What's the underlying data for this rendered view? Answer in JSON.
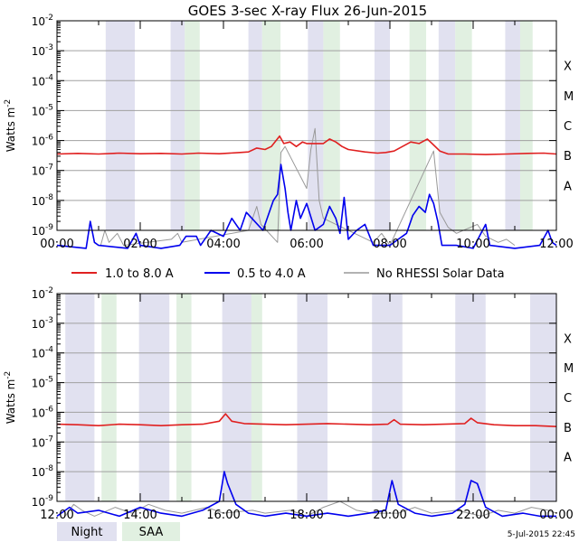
{
  "chart_data": [
    {
      "type": "line",
      "title": "GOES 3-sec X-ray Flux   26-Jun-2015",
      "ylabel": "Watts m",
      "ylabel_sup": "-2",
      "yscale": "log",
      "ylim_exp": [
        -9,
        -2
      ],
      "y_tick_exponents": [
        -9,
        -8,
        -7,
        -6,
        -5,
        -4,
        -3,
        -2
      ],
      "flare_classes": [
        "A",
        "B",
        "C",
        "M",
        "X"
      ],
      "xlim_hours": [
        0,
        12
      ],
      "x_tick_labels": [
        "00:00",
        "02:00",
        "04:00",
        "06:00",
        "08:00",
        "10:00",
        "12:00"
      ],
      "night_intervals_hours": [
        [
          1.17,
          1.87
        ],
        [
          2.73,
          3.07
        ],
        [
          4.6,
          4.93
        ],
        [
          6.03,
          6.4
        ],
        [
          7.63,
          8.0
        ],
        [
          9.17,
          9.57
        ],
        [
          10.77,
          11.13
        ]
      ],
      "saa_intervals_hours": [
        [
          3.07,
          3.43
        ],
        [
          4.93,
          5.37
        ],
        [
          6.4,
          6.8
        ],
        [
          8.47,
          8.87
        ],
        [
          9.57,
          9.97
        ],
        [
          11.13,
          11.43
        ]
      ],
      "series": [
        {
          "name": "1.0 to 8.0 A",
          "color": "#e02020",
          "points": [
            [
              0.0,
              -6.45
            ],
            [
              0.5,
              -6.43
            ],
            [
              1.0,
              -6.45
            ],
            [
              1.5,
              -6.42
            ],
            [
              2.0,
              -6.44
            ],
            [
              2.5,
              -6.43
            ],
            [
              3.0,
              -6.45
            ],
            [
              3.4,
              -6.42
            ],
            [
              3.9,
              -6.44
            ],
            [
              4.4,
              -6.4
            ],
            [
              4.6,
              -6.38
            ],
            [
              4.8,
              -6.25
            ],
            [
              5.0,
              -6.3
            ],
            [
              5.15,
              -6.2
            ],
            [
              5.35,
              -5.85
            ],
            [
              5.45,
              -6.1
            ],
            [
              5.6,
              -6.05
            ],
            [
              5.75,
              -6.2
            ],
            [
              5.9,
              -6.05
            ],
            [
              6.0,
              -6.1
            ],
            [
              6.4,
              -6.1
            ],
            [
              6.55,
              -5.95
            ],
            [
              6.7,
              -6.05
            ],
            [
              6.85,
              -6.2
            ],
            [
              7.0,
              -6.3
            ],
            [
              7.4,
              -6.38
            ],
            [
              7.7,
              -6.42
            ],
            [
              7.9,
              -6.4
            ],
            [
              8.1,
              -6.35
            ],
            [
              8.3,
              -6.2
            ],
            [
              8.5,
              -6.05
            ],
            [
              8.7,
              -6.1
            ],
            [
              8.9,
              -5.95
            ],
            [
              9.05,
              -6.15
            ],
            [
              9.2,
              -6.35
            ],
            [
              9.4,
              -6.45
            ],
            [
              9.8,
              -6.45
            ],
            [
              10.3,
              -6.47
            ],
            [
              10.8,
              -6.45
            ],
            [
              11.3,
              -6.43
            ],
            [
              11.7,
              -6.42
            ],
            [
              12.0,
              -6.45
            ]
          ]
        },
        {
          "name": "0.5 to 4.0 A",
          "color": "#0000ee",
          "points": [
            [
              0.0,
              -9.5
            ],
            [
              0.7,
              -9.6
            ],
            [
              0.8,
              -8.7
            ],
            [
              0.9,
              -9.4
            ],
            [
              1.0,
              -9.5
            ],
            [
              1.7,
              -9.6
            ],
            [
              1.9,
              -9.1
            ],
            [
              2.0,
              -9.5
            ],
            [
              2.5,
              -9.6
            ],
            [
              2.95,
              -9.5
            ],
            [
              3.1,
              -9.2
            ],
            [
              3.35,
              -9.2
            ],
            [
              3.45,
              -9.5
            ],
            [
              3.7,
              -9.0
            ],
            [
              4.0,
              -9.2
            ],
            [
              4.2,
              -8.6
            ],
            [
              4.4,
              -9.0
            ],
            [
              4.55,
              -8.4
            ],
            [
              4.95,
              -9.0
            ],
            [
              5.05,
              -8.6
            ],
            [
              5.2,
              -8.0
            ],
            [
              5.3,
              -7.8
            ],
            [
              5.38,
              -6.8
            ],
            [
              5.48,
              -7.6
            ],
            [
              5.55,
              -8.4
            ],
            [
              5.62,
              -9.0
            ],
            [
              5.75,
              -8.0
            ],
            [
              5.85,
              -8.6
            ],
            [
              6.0,
              -8.1
            ],
            [
              6.2,
              -9.0
            ],
            [
              6.4,
              -8.8
            ],
            [
              6.55,
              -8.2
            ],
            [
              6.7,
              -8.6
            ],
            [
              6.8,
              -9.1
            ],
            [
              6.9,
              -7.9
            ],
            [
              7.0,
              -9.3
            ],
            [
              7.2,
              -9.0
            ],
            [
              7.4,
              -8.8
            ],
            [
              7.6,
              -9.5
            ],
            [
              8.0,
              -9.5
            ],
            [
              8.2,
              -9.3
            ],
            [
              8.4,
              -9.1
            ],
            [
              8.55,
              -8.5
            ],
            [
              8.7,
              -8.2
            ],
            [
              8.85,
              -8.4
            ],
            [
              8.95,
              -7.8
            ],
            [
              9.05,
              -8.1
            ],
            [
              9.15,
              -8.7
            ],
            [
              9.25,
              -9.5
            ],
            [
              9.6,
              -9.5
            ],
            [
              10.0,
              -9.6
            ],
            [
              10.3,
              -8.8
            ],
            [
              10.4,
              -9.5
            ],
            [
              11.0,
              -9.6
            ],
            [
              11.6,
              -9.5
            ],
            [
              11.8,
              -9.0
            ],
            [
              11.9,
              -9.4
            ],
            [
              12.0,
              -9.5
            ]
          ]
        },
        {
          "name": "No RHESSI Solar Data",
          "color": "#999999",
          "points": [
            [
              1.05,
              -9.5
            ],
            [
              1.15,
              -9.0
            ],
            [
              1.25,
              -9.4
            ],
            [
              1.45,
              -9.1
            ],
            [
              1.6,
              -9.5
            ],
            [
              2.75,
              -9.3
            ],
            [
              2.9,
              -9.1
            ],
            [
              3.0,
              -9.4
            ],
            [
              4.6,
              -9.0
            ],
            [
              4.7,
              -8.6
            ],
            [
              4.8,
              -8.2
            ],
            [
              4.9,
              -8.8
            ],
            [
              5.3,
              -9.4
            ],
            [
              5.38,
              -6.4
            ],
            [
              5.48,
              -6.2
            ],
            [
              6.0,
              -7.6
            ],
            [
              6.1,
              -6.3
            ],
            [
              6.2,
              -5.6
            ],
            [
              6.3,
              -8.0
            ],
            [
              6.4,
              -8.6
            ],
            [
              7.6,
              -9.4
            ],
            [
              7.8,
              -9.1
            ],
            [
              8.0,
              -9.5
            ],
            [
              9.05,
              -6.35
            ],
            [
              9.2,
              -8.4
            ],
            [
              9.4,
              -8.9
            ],
            [
              9.6,
              -9.1
            ],
            [
              10.1,
              -8.8
            ],
            [
              10.3,
              -9.2
            ],
            [
              10.6,
              -9.4
            ],
            [
              10.8,
              -9.3
            ],
            [
              11.0,
              -9.5
            ]
          ]
        }
      ]
    },
    {
      "type": "line",
      "title": "",
      "ylabel": "Watts m",
      "ylabel_sup": "-2",
      "yscale": "log",
      "ylim_exp": [
        -9,
        -2
      ],
      "y_tick_exponents": [
        -9,
        -8,
        -7,
        -6,
        -5,
        -4,
        -3,
        -2
      ],
      "flare_classes": [
        "A",
        "B",
        "C",
        "M",
        "X"
      ],
      "xlim_hours": [
        12,
        24
      ],
      "x_tick_labels": [
        "12:00",
        "14:00",
        "16:00",
        "18:00",
        "20:00",
        "22:00",
        "00:00"
      ],
      "night_intervals_hours": [
        [
          12.2,
          12.9
        ],
        [
          13.97,
          14.7
        ],
        [
          15.97,
          16.7
        ],
        [
          17.77,
          18.5
        ],
        [
          19.57,
          20.3
        ],
        [
          21.57,
          22.3
        ],
        [
          23.37,
          24.0
        ]
      ],
      "saa_intervals_hours": [
        [
          13.07,
          13.43
        ],
        [
          14.87,
          15.23
        ],
        [
          16.67,
          16.93
        ]
      ],
      "series": [
        {
          "name": "1.0 to 8.0 A",
          "color": "#e02020",
          "points": [
            [
              12.0,
              -6.4
            ],
            [
              12.5,
              -6.42
            ],
            [
              13.0,
              -6.45
            ],
            [
              13.5,
              -6.4
            ],
            [
              14.0,
              -6.42
            ],
            [
              14.5,
              -6.45
            ],
            [
              15.0,
              -6.42
            ],
            [
              15.5,
              -6.4
            ],
            [
              15.9,
              -6.3
            ],
            [
              16.05,
              -6.05
            ],
            [
              16.2,
              -6.3
            ],
            [
              16.5,
              -6.38
            ],
            [
              17.0,
              -6.4
            ],
            [
              17.5,
              -6.42
            ],
            [
              18.0,
              -6.4
            ],
            [
              18.5,
              -6.38
            ],
            [
              19.0,
              -6.4
            ],
            [
              19.5,
              -6.42
            ],
            [
              19.95,
              -6.4
            ],
            [
              20.1,
              -6.25
            ],
            [
              20.25,
              -6.4
            ],
            [
              20.8,
              -6.42
            ],
            [
              21.3,
              -6.4
            ],
            [
              21.8,
              -6.38
            ],
            [
              21.95,
              -6.2
            ],
            [
              22.1,
              -6.35
            ],
            [
              22.5,
              -6.42
            ],
            [
              23.0,
              -6.45
            ],
            [
              23.5,
              -6.45
            ],
            [
              24.0,
              -6.48
            ]
          ]
        },
        {
          "name": "0.5 to 4.0 A",
          "color": "#0000ee",
          "points": [
            [
              12.0,
              -9.5
            ],
            [
              12.3,
              -9.2
            ],
            [
              12.5,
              -9.4
            ],
            [
              13.0,
              -9.3
            ],
            [
              13.5,
              -9.5
            ],
            [
              14.0,
              -9.2
            ],
            [
              14.5,
              -9.4
            ],
            [
              15.0,
              -9.5
            ],
            [
              15.5,
              -9.3
            ],
            [
              15.9,
              -9.0
            ],
            [
              16.02,
              -8.0
            ],
            [
              16.1,
              -8.4
            ],
            [
              16.3,
              -9.1
            ],
            [
              16.6,
              -9.4
            ],
            [
              17.0,
              -9.5
            ],
            [
              17.5,
              -9.4
            ],
            [
              18.0,
              -9.5
            ],
            [
              18.5,
              -9.4
            ],
            [
              19.0,
              -9.5
            ],
            [
              19.5,
              -9.4
            ],
            [
              19.9,
              -9.3
            ],
            [
              20.05,
              -8.3
            ],
            [
              20.2,
              -9.1
            ],
            [
              20.6,
              -9.4
            ],
            [
              21.0,
              -9.5
            ],
            [
              21.5,
              -9.4
            ],
            [
              21.8,
              -9.1
            ],
            [
              21.95,
              -8.3
            ],
            [
              22.1,
              -8.4
            ],
            [
              22.3,
              -9.2
            ],
            [
              22.7,
              -9.5
            ],
            [
              23.2,
              -9.4
            ],
            [
              23.6,
              -9.5
            ],
            [
              24.0,
              -9.5
            ]
          ]
        },
        {
          "name": "No RHESSI Solar Data",
          "color": "#999999",
          "points": [
            [
              12.2,
              -9.5
            ],
            [
              12.4,
              -9.1
            ],
            [
              12.6,
              -9.3
            ],
            [
              12.9,
              -9.5
            ],
            [
              13.4,
              -9.2
            ],
            [
              13.8,
              -9.4
            ],
            [
              14.2,
              -9.1
            ],
            [
              14.6,
              -9.3
            ],
            [
              15.0,
              -9.4
            ],
            [
              15.6,
              -9.2
            ],
            [
              16.0,
              -9.4
            ],
            [
              16.7,
              -9.3
            ],
            [
              17.0,
              -9.4
            ],
            [
              17.6,
              -9.3
            ],
            [
              18.0,
              -9.5
            ],
            [
              18.4,
              -9.2
            ],
            [
              18.8,
              -9.0
            ],
            [
              19.2,
              -9.3
            ],
            [
              19.6,
              -9.4
            ],
            [
              20.2,
              -9.4
            ],
            [
              20.6,
              -9.2
            ],
            [
              21.0,
              -9.4
            ],
            [
              21.6,
              -9.3
            ],
            [
              22.2,
              -9.5
            ],
            [
              22.6,
              -9.3
            ],
            [
              23.0,
              -9.4
            ],
            [
              23.4,
              -9.2
            ],
            [
              23.8,
              -9.3
            ],
            [
              24.0,
              -9.4
            ]
          ]
        }
      ]
    }
  ],
  "legend": {
    "items": [
      {
        "label": "1.0 to 8.0 A",
        "color": "#e02020"
      },
      {
        "label": "0.5 to 4.0 A",
        "color": "#0000ee"
      },
      {
        "label": "No RHESSI Solar Data",
        "color": "#999999"
      }
    ]
  },
  "bottom_legend": {
    "night_label": "Night",
    "night_color": "#e1e1f0",
    "saa_label": "SAA",
    "saa_color": "#e1f0e1"
  },
  "timestamp": "5-Jul-2015 22:45"
}
